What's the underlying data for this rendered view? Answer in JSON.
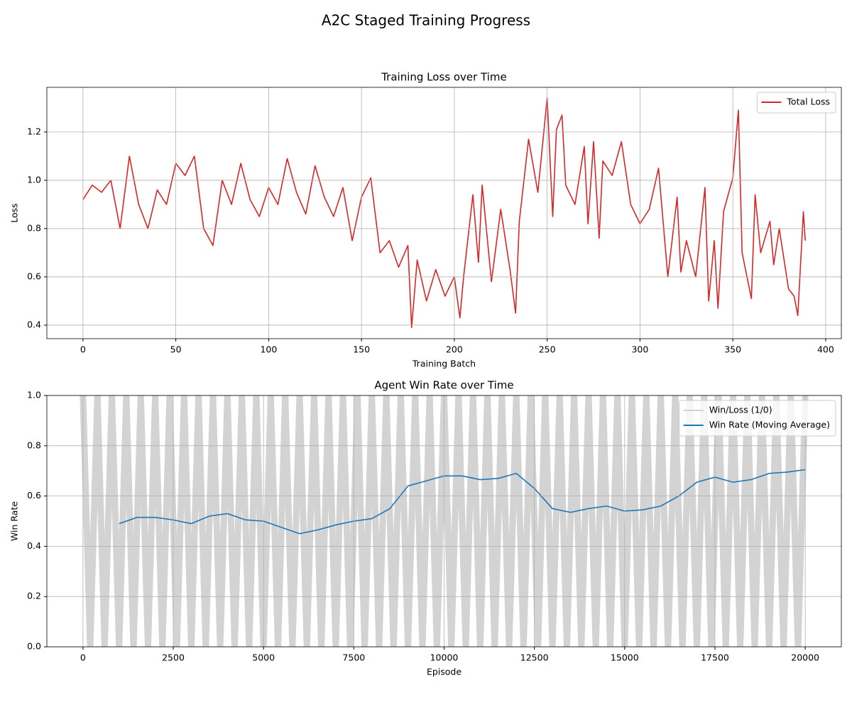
{
  "title": "A2C Staged Training Progress",
  "chart_data": [
    {
      "type": "line",
      "title": "Training Loss over Time",
      "xlabel": "Training Batch",
      "ylabel": "Loss",
      "xlim": [
        -19.45,
        408.45
      ],
      "ylim": [
        0.344,
        1.385
      ],
      "xticks": [
        0,
        50,
        100,
        150,
        200,
        250,
        300,
        350,
        400
      ],
      "yticks": [
        0.4,
        0.6,
        0.8,
        {
          "value": 1,
          "label": "1.0"
        },
        1.2
      ],
      "grid": true,
      "legend": "upper right",
      "series": [
        {
          "name": "Total Loss",
          "color": "#d62728",
          "x": [
            0,
            5,
            10,
            15,
            20,
            25,
            30,
            35,
            40,
            45,
            50,
            55,
            60,
            65,
            70,
            75,
            80,
            85,
            90,
            95,
            100,
            105,
            110,
            115,
            120,
            125,
            130,
            135,
            140,
            145,
            150,
            155,
            160,
            165,
            170,
            175,
            177,
            180,
            185,
            190,
            195,
            200,
            203,
            205,
            210,
            213,
            215,
            220,
            225,
            230,
            233,
            235,
            240,
            245,
            250,
            253,
            255,
            258,
            260,
            265,
            270,
            272,
            275,
            278,
            280,
            285,
            290,
            295,
            300,
            305,
            310,
            315,
            320,
            322,
            325,
            330,
            335,
            337,
            340,
            342,
            345,
            350,
            353,
            355,
            360,
            362,
            365,
            370,
            372,
            375,
            380,
            383,
            385,
            388,
            389
          ],
          "values": [
            0.92,
            0.98,
            0.95,
            1.0,
            0.8,
            1.1,
            0.9,
            0.8,
            0.96,
            0.9,
            1.07,
            1.02,
            1.1,
            0.8,
            0.73,
            1.0,
            0.9,
            1.07,
            0.92,
            0.85,
            0.97,
            0.9,
            1.09,
            0.95,
            0.86,
            1.06,
            0.93,
            0.85,
            0.97,
            0.75,
            0.93,
            1.01,
            0.7,
            0.75,
            0.64,
            0.73,
            0.39,
            0.67,
            0.5,
            0.63,
            0.52,
            0.6,
            0.43,
            0.6,
            0.94,
            0.66,
            0.98,
            0.58,
            0.88,
            0.63,
            0.45,
            0.83,
            1.17,
            0.95,
            1.34,
            0.85,
            1.21,
            1.27,
            0.98,
            0.9,
            1.14,
            0.82,
            1.16,
            0.76,
            1.08,
            1.02,
            1.16,
            0.9,
            0.82,
            0.88,
            1.05,
            0.6,
            0.93,
            0.62,
            0.75,
            0.6,
            0.97,
            0.5,
            0.75,
            0.47,
            0.87,
            1.01,
            1.29,
            0.7,
            0.51,
            0.94,
            0.7,
            0.83,
            0.65,
            0.8,
            0.55,
            0.52,
            0.44,
            0.87,
            0.75
          ]
        }
      ]
    },
    {
      "type": "line",
      "title": "Agent Win Rate over Time",
      "xlabel": "Episode",
      "ylabel": "Win Rate",
      "xlim": [
        -1000,
        21000
      ],
      "ylim": [
        0,
        1
      ],
      "xticks": [
        0,
        2500,
        5000,
        7500,
        10000,
        12500,
        15000,
        17500,
        20000
      ],
      "yticks": [
        {
          "value": 0,
          "label": "0.0"
        },
        0.2,
        0.4,
        0.6,
        0.8,
        {
          "value": 1,
          "label": "1.0"
        }
      ],
      "grid": true,
      "legend": "upper right",
      "series": [
        {
          "name": "Win/Loss (1/0)",
          "color": "lightgray",
          "x": [
            0,
            200,
            400,
            600,
            800,
            1000,
            1200,
            1400,
            1600,
            1800,
            2000,
            2200,
            2400,
            2600,
            2800,
            3000,
            3200,
            3400,
            3600,
            3800,
            4000,
            4200,
            4400,
            4600,
            4800,
            5000,
            5200,
            5400,
            5600,
            5800,
            6000,
            6200,
            6400,
            6600,
            6800,
            7000,
            7200,
            7400,
            7600,
            7800,
            8000,
            8200,
            8400,
            8600,
            8800,
            9000,
            9200,
            9400,
            9600,
            9800,
            10000,
            10200,
            10400,
            10600,
            10800,
            11000,
            11200,
            11400,
            11600,
            11800,
            12000,
            12200,
            12400,
            12600,
            12800,
            13000,
            13200,
            13400,
            13600,
            13800,
            14000,
            14200,
            14400,
            14600,
            14800,
            15000,
            15200,
            15400,
            15600,
            15800,
            16000,
            16200,
            16400,
            16600,
            16800,
            17000,
            17200,
            17400,
            17600,
            17800,
            18000,
            18200,
            18400,
            18600,
            18800,
            19000,
            19200,
            19400,
            19600,
            19800,
            20000
          ],
          "values": [
            1,
            0,
            1,
            0,
            1,
            0,
            1,
            0,
            1,
            0,
            1,
            0,
            1,
            0,
            1,
            0,
            1,
            0,
            1,
            0,
            1,
            0,
            1,
            0,
            1,
            0,
            1,
            0,
            1,
            0,
            1,
            0,
            1,
            0,
            1,
            0,
            1,
            0,
            1,
            0,
            1,
            0,
            1,
            0,
            1,
            0,
            1,
            0,
            1,
            0,
            1,
            0,
            1,
            0,
            1,
            0,
            1,
            0,
            1,
            0,
            1,
            0,
            1,
            0,
            1,
            0,
            1,
            0,
            1,
            0,
            1,
            0,
            1,
            0,
            1,
            0,
            1,
            0,
            1,
            0,
            1,
            0,
            1,
            0,
            1,
            0,
            1,
            0,
            1,
            0,
            1,
            0,
            1,
            0,
            1,
            0,
            1,
            0,
            1,
            0,
            1
          ]
        },
        {
          "name": "Win Rate (Moving Average)",
          "color": "#1f77b4",
          "x": [
            1000,
            1500,
            2000,
            2500,
            3000,
            3500,
            4000,
            4500,
            5000,
            5500,
            6000,
            6500,
            7000,
            7500,
            8000,
            8500,
            9000,
            9500,
            10000,
            10500,
            11000,
            11500,
            12000,
            12500,
            13000,
            13500,
            14000,
            14500,
            15000,
            15500,
            16000,
            16500,
            17000,
            17500,
            18000,
            18500,
            19000,
            19500,
            20000
          ],
          "values": [
            0.49,
            0.515,
            0.515,
            0.505,
            0.49,
            0.52,
            0.53,
            0.505,
            0.5,
            0.475,
            0.45,
            0.465,
            0.485,
            0.5,
            0.51,
            0.55,
            0.64,
            0.66,
            0.68,
            0.68,
            0.665,
            0.67,
            0.69,
            0.63,
            0.55,
            0.535,
            0.55,
            0.56,
            0.54,
            0.545,
            0.56,
            0.6,
            0.655,
            0.675,
            0.655,
            0.665,
            0.69,
            0.695,
            0.705
          ]
        }
      ]
    }
  ]
}
